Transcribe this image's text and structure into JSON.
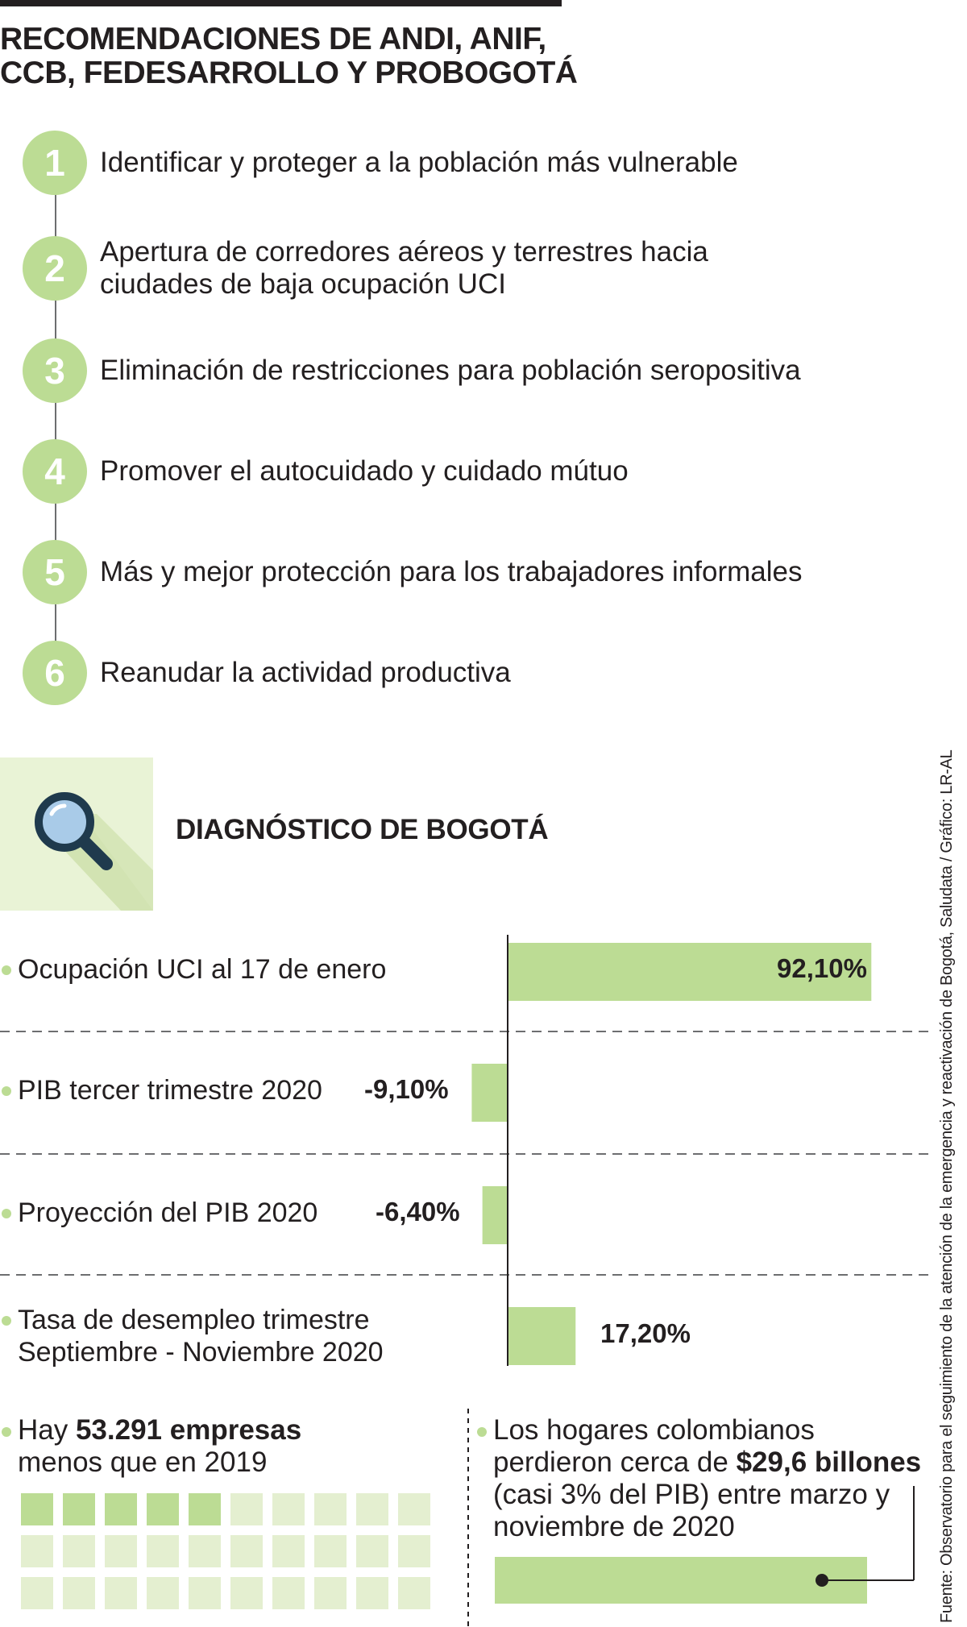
{
  "title": "RECOMENDACIONES DE ANDI, ANIF, CCB, FEDESARROLLO Y PROBOGOTÁ",
  "recommendations": [
    {
      "num": "1",
      "text": "Identificar y proteger a la población más vulnerable"
    },
    {
      "num": "2",
      "text": "Apertura de corredores aéreos y terrestres hacia ciudades de baja ocupación UCI"
    },
    {
      "num": "3",
      "text": "Eliminación de restricciones para población seropositiva"
    },
    {
      "num": "4",
      "text": "Promover el autocuidado y cuidado mútuo"
    },
    {
      "num": "5",
      "text": "Más y mejor protección para los trabajadores informales"
    },
    {
      "num": "6",
      "text": "Reanudar la actividad productiva"
    }
  ],
  "diagnosis": {
    "title": "DIAGNÓSTICO DE BOGOTÁ",
    "icon": "magnifying-glass-icon"
  },
  "chart_data": {
    "type": "bar",
    "orientation": "horizontal",
    "categories": [
      "Ocupación UCI al 17 de enero",
      "PIB tercer trimestre 2020",
      "Proyección del PIB 2020",
      "Tasa de desempleo trimestre Septiembre - Noviembre 2020"
    ],
    "values": [
      92.1,
      -9.1,
      -6.4,
      17.2
    ],
    "value_labels": [
      "92,10%",
      "-9,10%",
      "-6,40%",
      "17,20%"
    ],
    "bar_color": "#bcdc94"
  },
  "companies": {
    "prefix": "Hay ",
    "highlight": "53.291 empresas",
    "suffix": "menos que en 2019",
    "grid_filled": 5,
    "grid_total": 30
  },
  "households": {
    "line1": "Los hogares colombianos",
    "line2_prefix": "perdieron cerca de ",
    "highlight": "$29,6 billones",
    "line3": "(casi 3% del PIB) entre marzo y",
    "line4": "noviembre de 2020"
  },
  "source": "Fuente: Observatorio para el seguimiento de la atención de la emergencia y reactivación de Bogotá, Saludata / Gráfico: LR-AL",
  "colors": {
    "accent": "#bcdc94",
    "accent_light": "#e4efd0",
    "box_bg": "#e9f3d6",
    "text": "#231f20"
  }
}
